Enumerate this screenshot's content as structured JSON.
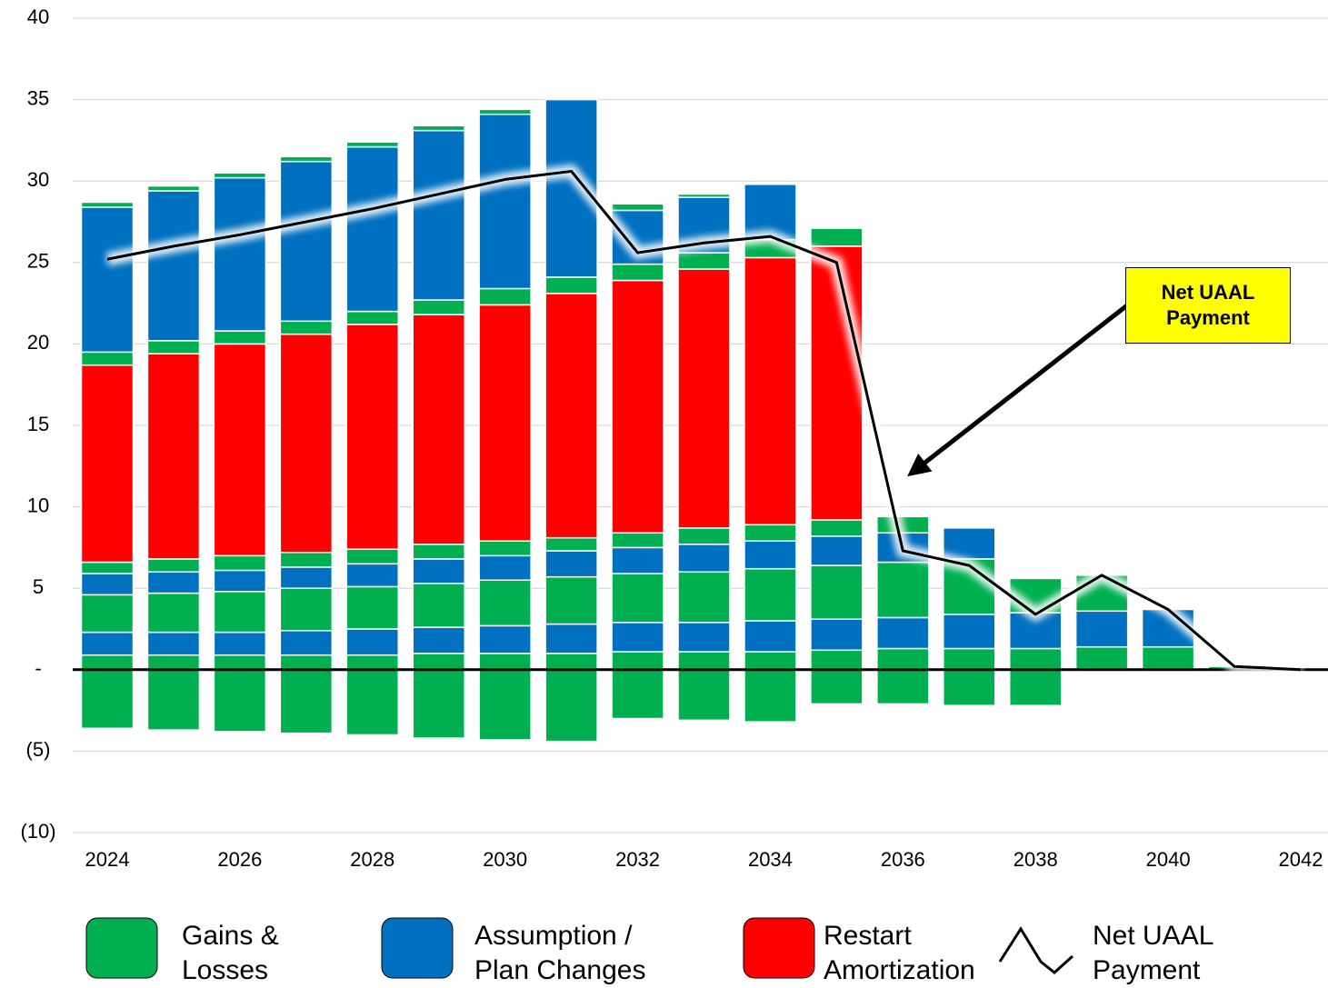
{
  "chart_data": {
    "type": "bar",
    "categories": [
      "2024",
      null,
      "2026",
      null,
      "2028",
      null,
      "2030",
      null,
      "2032",
      null,
      "2034",
      null,
      "2036",
      null,
      "2038",
      null,
      "2040",
      null,
      "2042"
    ],
    "ylim": [
      -10,
      40
    ],
    "yticks": [
      {
        "value": -10,
        "label": "(10)"
      },
      {
        "value": -5,
        "label": "(5)"
      },
      {
        "value": 0,
        "label": "-"
      },
      5,
      10,
      15,
      20,
      25,
      30,
      35,
      40
    ],
    "grid": true,
    "series": [
      {
        "name": "Gains & Losses",
        "color": "#00b050",
        "values": [
          0.9,
          0.9,
          0.9,
          0.9,
          0.9,
          1.0,
          1.0,
          1.0,
          1.1,
          1.1,
          1.1,
          1.2,
          1.3,
          1.3,
          1.3,
          1.4,
          1.4,
          0.2,
          0
        ]
      },
      {
        "name": "Assumption / Plan Changes",
        "color": "#0070c0",
        "values": [
          1.4,
          1.4,
          1.4,
          1.5,
          1.6,
          1.6,
          1.7,
          1.8,
          1.8,
          1.8,
          1.9,
          1.9,
          1.9,
          2.1,
          2.2,
          2.2,
          2.3,
          0,
          0
        ]
      },
      {
        "color": "#00b050",
        "values": [
          2.3,
          2.4,
          2.5,
          2.6,
          2.6,
          2.7,
          2.8,
          2.9,
          3.0,
          3.1,
          3.2,
          3.3,
          3.4,
          3.4,
          2.1,
          2.2,
          0,
          0,
          0
        ]
      },
      {
        "color": "#0070c0",
        "values": [
          1.3,
          1.3,
          1.3,
          1.3,
          1.4,
          1.5,
          1.5,
          1.6,
          1.6,
          1.7,
          1.7,
          1.8,
          1.8,
          1.9,
          0,
          0,
          0,
          0,
          0
        ]
      },
      {
        "color": "#00b050",
        "values": [
          0.7,
          0.8,
          0.9,
          0.9,
          0.9,
          0.9,
          0.9,
          0.8,
          0.9,
          1.0,
          1.0,
          1.0,
          1.0,
          0,
          0,
          0,
          0,
          0,
          0
        ]
      },
      {
        "name": "Restart Amortization",
        "color": "#ff0000",
        "values": [
          12.1,
          12.6,
          13.0,
          13.4,
          13.8,
          14.1,
          14.5,
          15.0,
          15.5,
          15.9,
          16.4,
          16.8,
          0,
          0,
          0,
          0,
          0,
          0,
          0
        ]
      },
      {
        "color": "#00b050",
        "values": [
          0.8,
          0.8,
          0.8,
          0.8,
          0.8,
          0.9,
          1.0,
          1.0,
          1.0,
          1.0,
          1.1,
          1.1,
          0,
          0,
          0,
          0,
          0,
          0,
          0
        ]
      },
      {
        "color": "#0070c0",
        "values": [
          8.9,
          9.2,
          9.4,
          9.8,
          10.1,
          10.4,
          10.7,
          10.9,
          3.3,
          3.4,
          3.4,
          0,
          0,
          0,
          0,
          0,
          0,
          0,
          0
        ]
      },
      {
        "color": "#00b050",
        "values": [
          0.3,
          0.3,
          0.3,
          0.3,
          0.3,
          0.3,
          0.3,
          0,
          0.4,
          0.2,
          0,
          0,
          0,
          0,
          0,
          0,
          0,
          0,
          0
        ]
      },
      {
        "color": "#00b050",
        "values": [
          -3.6,
          -3.7,
          -3.8,
          -3.9,
          -4.0,
          -4.2,
          -4.3,
          -4.4,
          -3.0,
          -3.1,
          -3.2,
          -2.1,
          -2.1,
          -2.2,
          -2.2,
          0,
          0,
          0,
          0
        ]
      },
      {
        "name": "Net UAAL Payment",
        "type": "line",
        "color": "#000000",
        "values": [
          25.2,
          26.0,
          26.7,
          27.5,
          28.3,
          29.2,
          30.1,
          30.6,
          25.6,
          26.2,
          26.6,
          25.0,
          7.3,
          6.4,
          3.4,
          5.8,
          3.7,
          0.2,
          0
        ]
      }
    ],
    "annotation": "Net UAAL Payment"
  }
}
